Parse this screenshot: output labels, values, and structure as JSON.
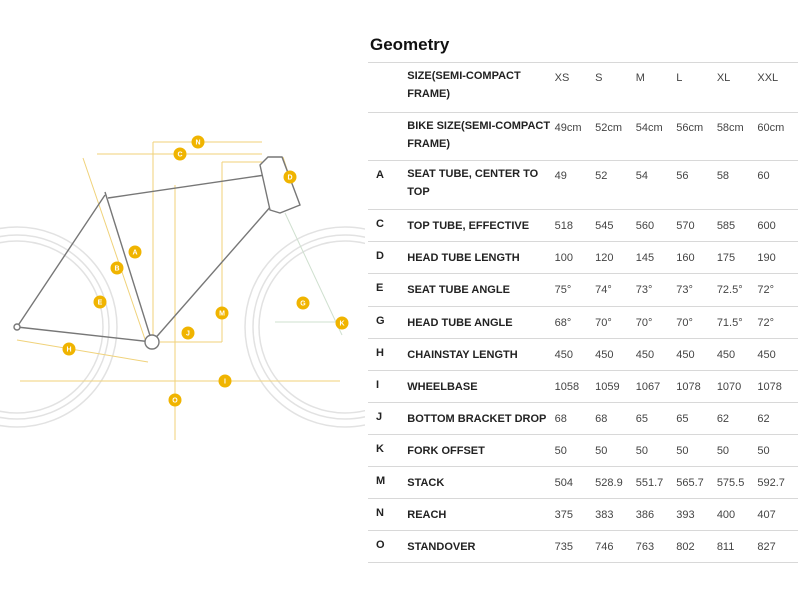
{
  "title": "Geometry",
  "diagram": {
    "labels": [
      "N",
      "C",
      "D",
      "A",
      "B",
      "E",
      "G",
      "K",
      "M",
      "J",
      "H",
      "I",
      "O"
    ],
    "accent": "#f0b400"
  },
  "header": {
    "rows": [
      {
        "letter": "",
        "name": "SIZE(SEMI-COMPACT FRAME)",
        "values": [
          "XS",
          "S",
          "M",
          "L",
          "XL",
          "XXL"
        ]
      },
      {
        "letter": "",
        "name": "BIKE SIZE(SEMI-COMPACT FRAME)",
        "values": [
          "49cm",
          "52cm",
          "54cm",
          "56cm",
          "58cm",
          "60cm"
        ]
      }
    ]
  },
  "rows": [
    {
      "letter": "A",
      "name": "SEAT TUBE, CENTER TO TOP",
      "values": [
        "49",
        "52",
        "54",
        "56",
        "58",
        "60"
      ]
    },
    {
      "letter": "C",
      "name": "TOP TUBE, EFFECTIVE",
      "values": [
        "518",
        "545",
        "560",
        "570",
        "585",
        "600"
      ]
    },
    {
      "letter": "D",
      "name": "HEAD TUBE LENGTH",
      "values": [
        "100",
        "120",
        "145",
        "160",
        "175",
        "190"
      ]
    },
    {
      "letter": "E",
      "name": "SEAT TUBE ANGLE",
      "values": [
        "75°",
        "74°",
        "73°",
        "73°",
        "72.5°",
        "72°"
      ]
    },
    {
      "letter": "G",
      "name": "HEAD TUBE ANGLE",
      "values": [
        "68°",
        "70°",
        "70°",
        "70°",
        "71.5°",
        "72°"
      ]
    },
    {
      "letter": "H",
      "name": "CHAINSTAY LENGTH",
      "values": [
        "450",
        "450",
        "450",
        "450",
        "450",
        "450"
      ]
    },
    {
      "letter": "I",
      "name": "WHEELBASE",
      "values": [
        "1058",
        "1059",
        "1067",
        "1078",
        "1070",
        "1078"
      ]
    },
    {
      "letter": "J",
      "name": "BOTTOM BRACKET DROP",
      "values": [
        "68",
        "68",
        "65",
        "65",
        "62",
        "62"
      ]
    },
    {
      "letter": "K",
      "name": "FORK OFFSET",
      "values": [
        "50",
        "50",
        "50",
        "50",
        "50",
        "50"
      ]
    },
    {
      "letter": "M",
      "name": "STACK",
      "values": [
        "504",
        "528.9",
        "551.7",
        "565.7",
        "575.5",
        "592.7"
      ]
    },
    {
      "letter": "N",
      "name": "REACH",
      "values": [
        "375",
        "383",
        "386",
        "393",
        "400",
        "407"
      ]
    },
    {
      "letter": "O",
      "name": "STANDOVER",
      "values": [
        "735",
        "746",
        "763",
        "802",
        "811",
        "827"
      ]
    }
  ]
}
